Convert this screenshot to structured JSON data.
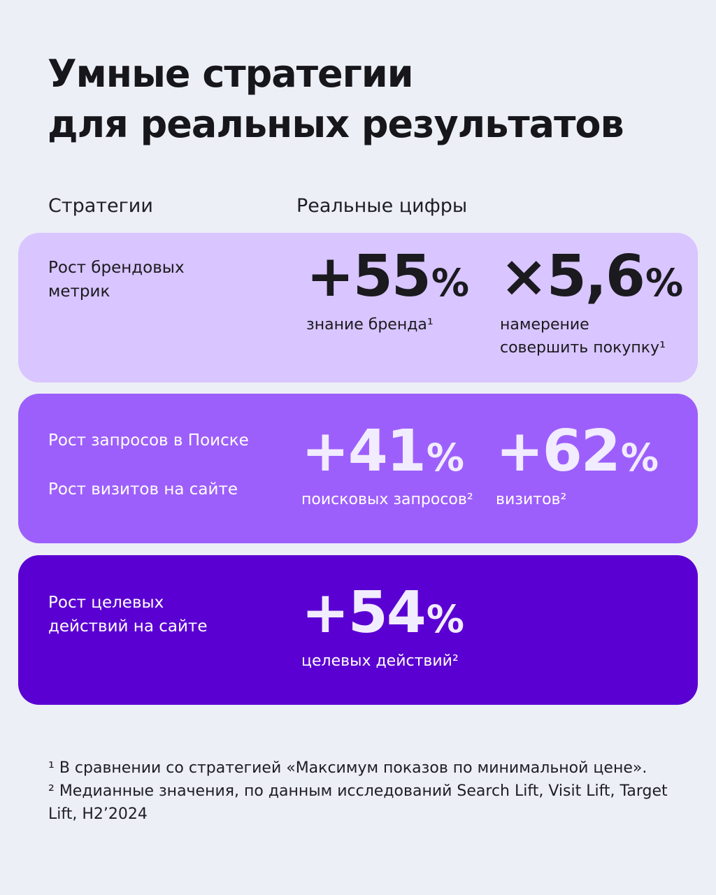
{
  "title": {
    "line1": "Умные стратегии",
    "line2": "для реальных результатов"
  },
  "headers": {
    "strategies": "Стратегии",
    "real_numbers": "Реальные цифры"
  },
  "cards": [
    {
      "labels": [
        "Рост брендовых",
        "метрик"
      ],
      "metrics": [
        {
          "value": "+55",
          "unit": "%",
          "desc": [
            "знание бренда¹"
          ]
        },
        {
          "value": "×5,6",
          "unit": "%",
          "desc": [
            "намерение",
            "совершить покупку¹"
          ]
        }
      ]
    },
    {
      "labels": [
        "Рост запросов в Поиске",
        "Рост визитов на сайте"
      ],
      "metrics": [
        {
          "value": "+41",
          "unit": "%",
          "desc": [
            "поисковых запросов²"
          ]
        },
        {
          "value": "+62",
          "unit": "%",
          "desc": [
            "визитов²"
          ]
        }
      ]
    },
    {
      "labels": [
        "Рост целевых",
        "действий на сайте"
      ],
      "metrics": [
        {
          "value": "+54",
          "unit": "%",
          "desc": [
            "целевых действий²"
          ]
        }
      ]
    }
  ],
  "footnotes": {
    "note1": "¹ В сравнении со стратегией «Максимум показов по минимальной цене».",
    "note2": "² Медианные значения, по данным исследований Search Lift, Visit Lift, Target Lift, H2’2024"
  },
  "colors": {
    "background": "#eceff6",
    "card1": "#d9c5ff",
    "card2": "#9d5ffc",
    "card3": "#5a00d2"
  }
}
